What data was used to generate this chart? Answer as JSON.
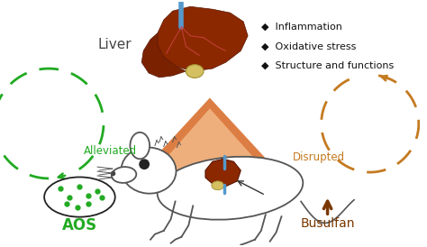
{
  "bg_color": "#ffffff",
  "liver_label": "Liver",
  "liver_label_color": "#444444",
  "effects": [
    "◆  Inflammation",
    "◆  Oxidative stress",
    "◆  Structure and functions"
  ],
  "effects_color": "#111111",
  "alleviated_label": "Alleviated",
  "alleviated_color": "#22aa22",
  "aos_label": "AOS",
  "aos_color": "#22aa22",
  "disrupted_label": "Disrupted",
  "disrupted_color": "#c47a20",
  "busulfan_label": "Busulfan",
  "busulfan_color": "#7a3800",
  "arrow_green": "#22aa22",
  "arrow_orange": "#c47a20",
  "triangle_outer": "#d97030",
  "triangle_inner": "#f5c090",
  "liver_dark": "#7a2800",
  "liver_mid": "#a03010",
  "gallbladder": "#d4c060",
  "tube_color": "#5599cc",
  "rat_outline": "#888888",
  "dot_color": "#22aa22"
}
